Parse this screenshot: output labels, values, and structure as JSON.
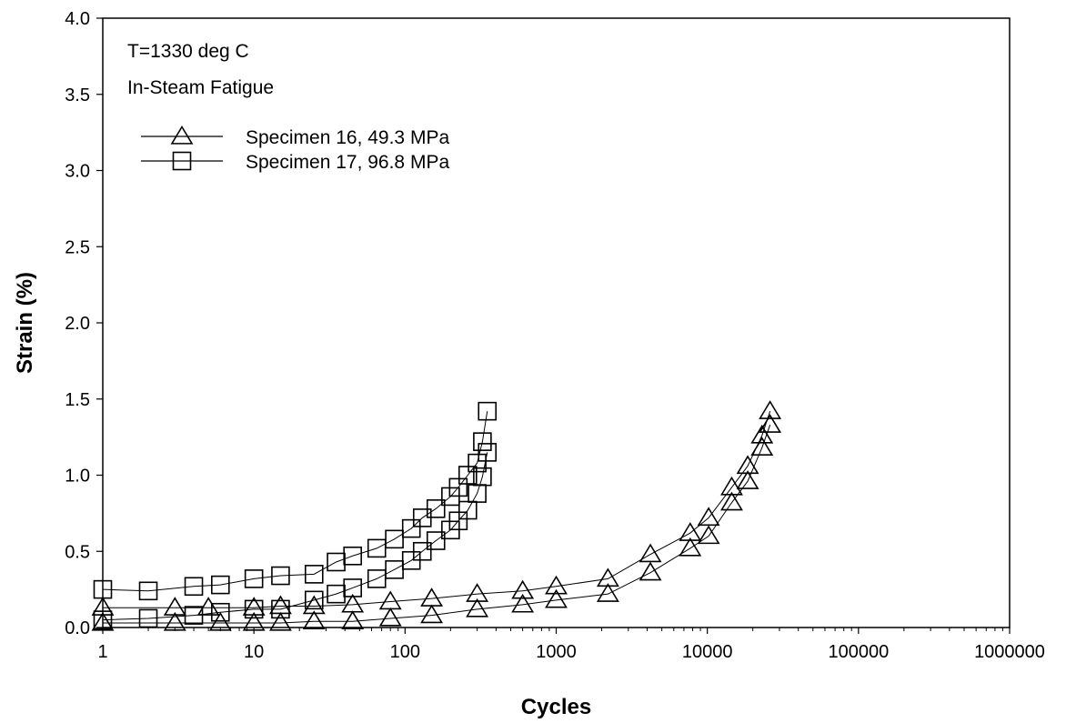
{
  "chart_data": {
    "type": "scatter",
    "xscale": "log",
    "xlim": [
      1,
      1000000
    ],
    "ylim": [
      0,
      4
    ],
    "xlabel": "Cycles",
    "ylabel": "Strain (%)",
    "grid": false,
    "legend_position": "top-left",
    "xticks": [
      "1",
      "10",
      "100",
      "1000",
      "10000",
      "100000",
      "1000000"
    ],
    "yticks": [
      "0.0",
      "0.5",
      "1.0",
      "1.5",
      "2.0",
      "2.5",
      "3.0",
      "3.5",
      "4.0"
    ],
    "annotations": [
      "T=1330 deg C",
      "In-Steam Fatigue"
    ],
    "series": [
      {
        "name": "Specimen 16, 49.3 MPa",
        "marker": "triangle",
        "color": "#000000",
        "max_strain": {
          "x": [
            1,
            3,
            5,
            10,
            15,
            25,
            45,
            80,
            150,
            300,
            600,
            1000,
            2200,
            4200,
            7700,
            10200,
            14500,
            18500,
            23000,
            26000
          ],
          "y": [
            0.13,
            0.13,
            0.13,
            0.13,
            0.14,
            0.14,
            0.15,
            0.17,
            0.19,
            0.22,
            0.24,
            0.27,
            0.32,
            0.48,
            0.62,
            0.72,
            0.92,
            1.06,
            1.26,
            1.42
          ]
        },
        "min_strain": {
          "x": [
            1,
            3,
            6,
            10,
            15,
            25,
            45,
            80,
            150,
            300,
            600,
            1000,
            2200,
            4200,
            7700,
            10200,
            14500,
            18500,
            23000,
            26000
          ],
          "y": [
            0.03,
            0.03,
            0.03,
            0.03,
            0.03,
            0.04,
            0.04,
            0.06,
            0.08,
            0.12,
            0.15,
            0.18,
            0.22,
            0.36,
            0.52,
            0.6,
            0.82,
            0.96,
            1.18,
            1.33
          ]
        }
      },
      {
        "name": "Specimen 17, 96.8 MPa",
        "marker": "square",
        "color": "#000000",
        "max_strain": {
          "x": [
            1,
            2,
            4,
            6,
            10,
            15,
            25,
            35,
            45,
            65,
            85,
            110,
            130,
            160,
            200,
            225,
            260,
            300,
            325,
            350
          ],
          "y": [
            0.25,
            0.24,
            0.27,
            0.28,
            0.32,
            0.34,
            0.35,
            0.43,
            0.47,
            0.52,
            0.58,
            0.65,
            0.72,
            0.78,
            0.86,
            0.92,
            1.0,
            1.08,
            1.22,
            1.42
          ]
        },
        "min_strain": {
          "x": [
            1,
            2,
            4,
            6,
            10,
            15,
            25,
            35,
            45,
            65,
            85,
            110,
            130,
            160,
            200,
            225,
            260,
            300,
            325,
            350
          ],
          "y": [
            0.05,
            0.06,
            0.08,
            0.1,
            0.12,
            0.12,
            0.18,
            0.22,
            0.26,
            0.32,
            0.38,
            0.44,
            0.5,
            0.57,
            0.64,
            0.7,
            0.77,
            0.88,
            0.99,
            1.15
          ]
        }
      }
    ]
  }
}
